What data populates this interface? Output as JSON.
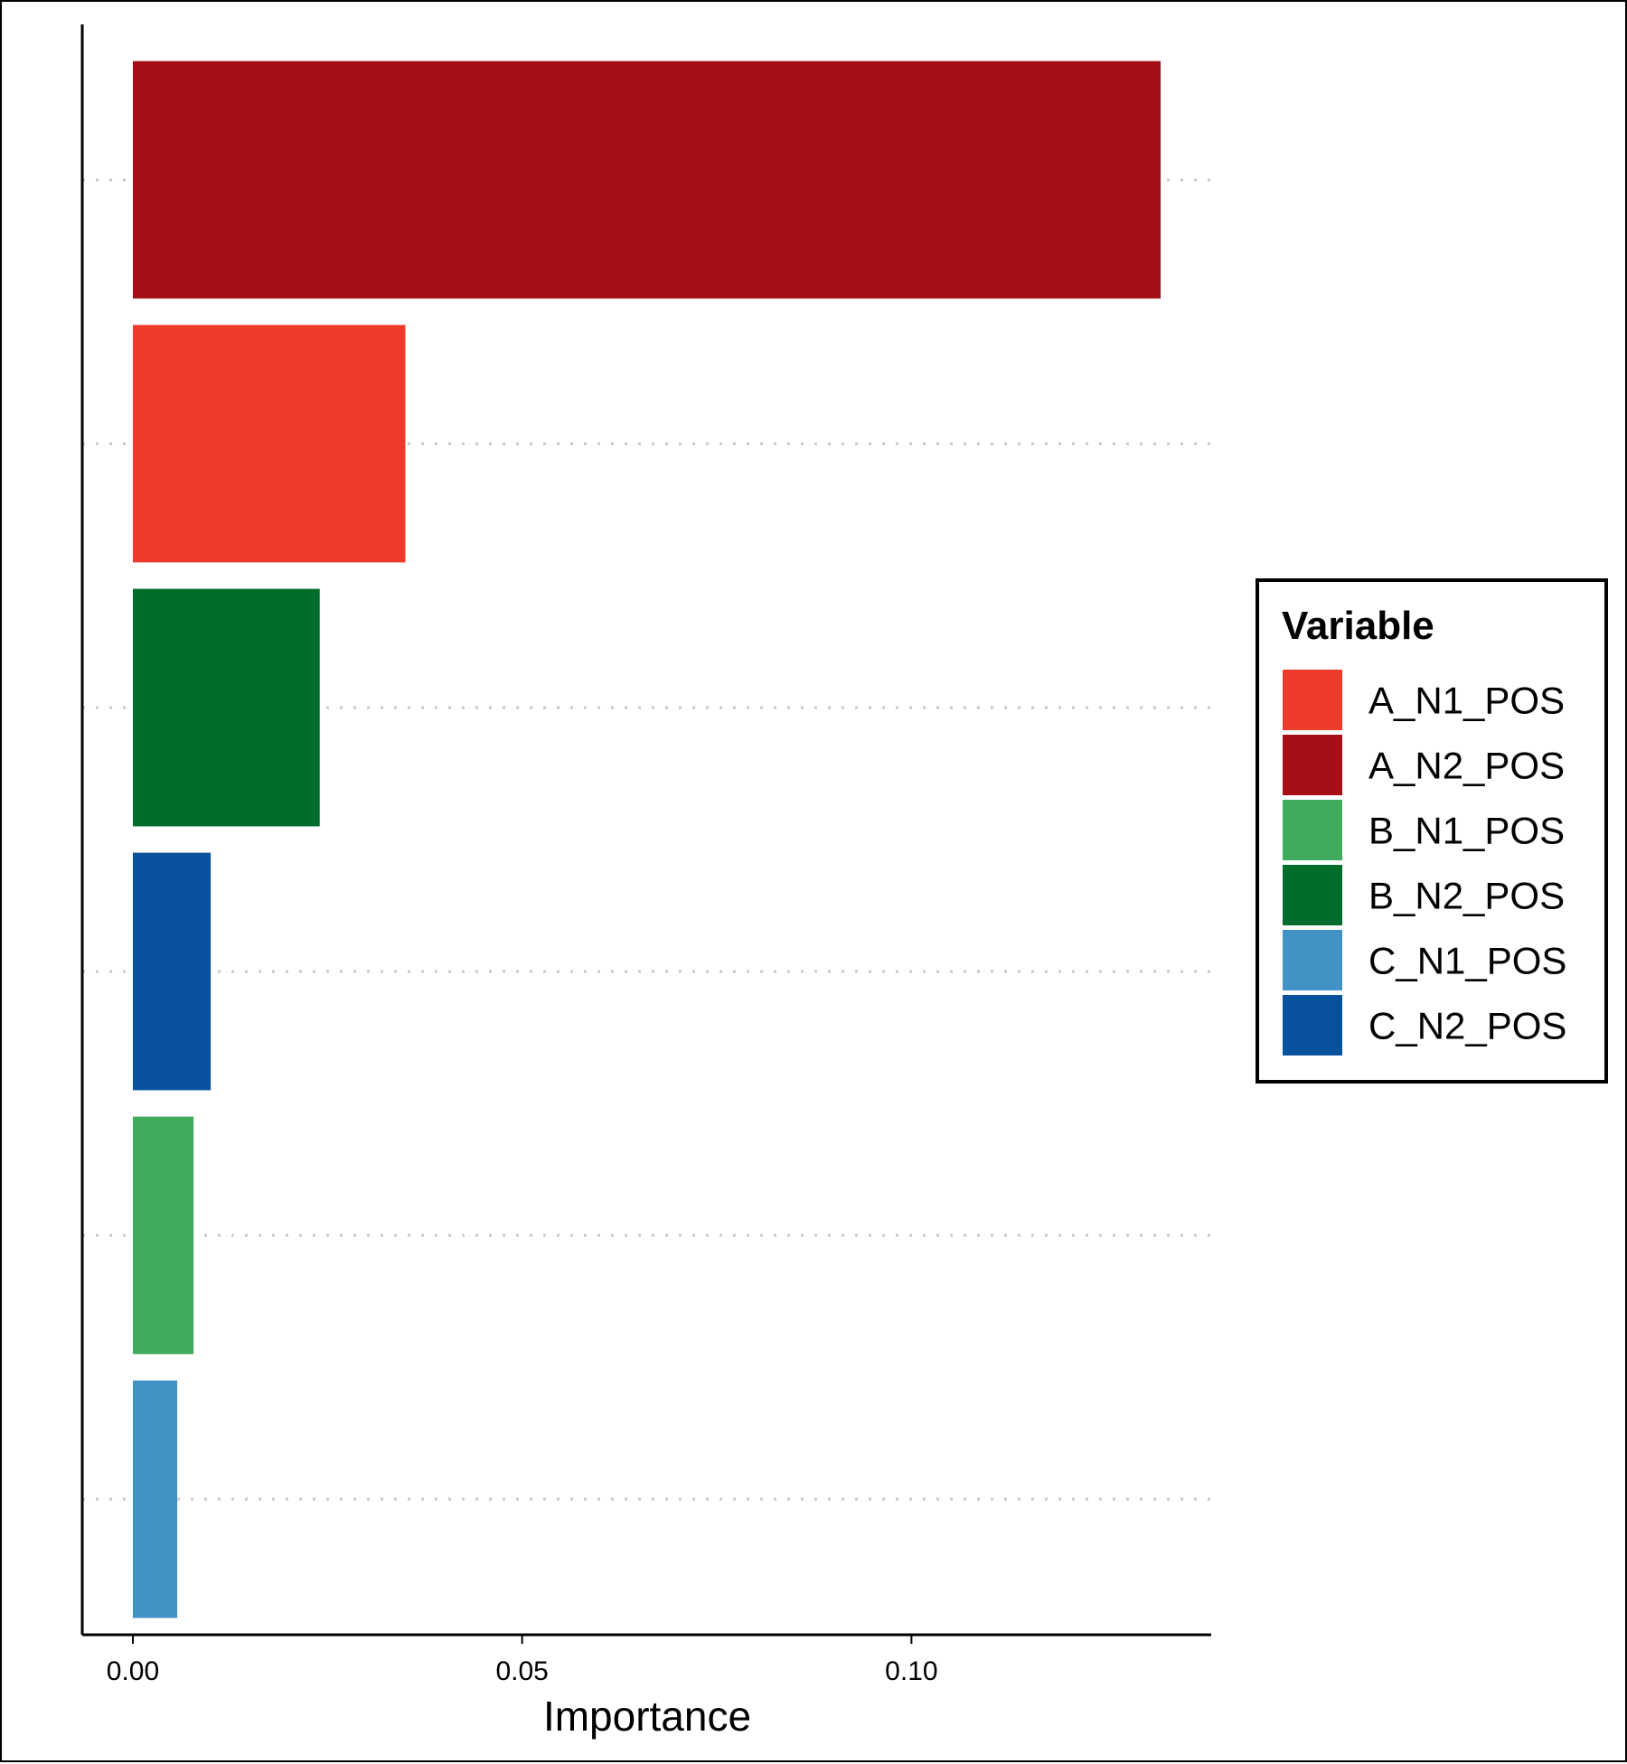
{
  "chart_data": {
    "type": "bar",
    "orientation": "horizontal",
    "categories": [
      "A_N2_POS",
      "A_N1_POS",
      "B_N2_POS",
      "C_N2_POS",
      "B_N1_POS",
      "C_N1_POS"
    ],
    "values": [
      0.132,
      0.035,
      0.024,
      0.01,
      0.0078,
      0.0057
    ],
    "xlabel": "Importance",
    "ylabel": "",
    "xlim": [
      -0.0065,
      0.1385
    ],
    "xticks": [
      0.0,
      0.05,
      0.1
    ],
    "xtick_labels": [
      "0.00",
      "0.05",
      "0.10"
    ],
    "grid": "horizontal dotted",
    "legend": {
      "title": "Variable",
      "placement": "right",
      "entries": [
        {
          "label": "A_N1_POS",
          "color": "#EF3B2C"
        },
        {
          "label": "A_N2_POS",
          "color": "#A50F15"
        },
        {
          "label": "B_N1_POS",
          "color": "#41AB5D"
        },
        {
          "label": "B_N2_POS",
          "color": "#006D2C"
        },
        {
          "label": "C_N1_POS",
          "color": "#4292C6"
        },
        {
          "label": "C_N2_POS",
          "color": "#08519C"
        }
      ]
    },
    "colors": {
      "A_N1_POS": "#EF3B2C",
      "A_N2_POS": "#A50F15",
      "B_N1_POS": "#41AB5D",
      "B_N2_POS": "#006D2C",
      "C_N1_POS": "#4292C6",
      "C_N2_POS": "#08519C"
    }
  }
}
